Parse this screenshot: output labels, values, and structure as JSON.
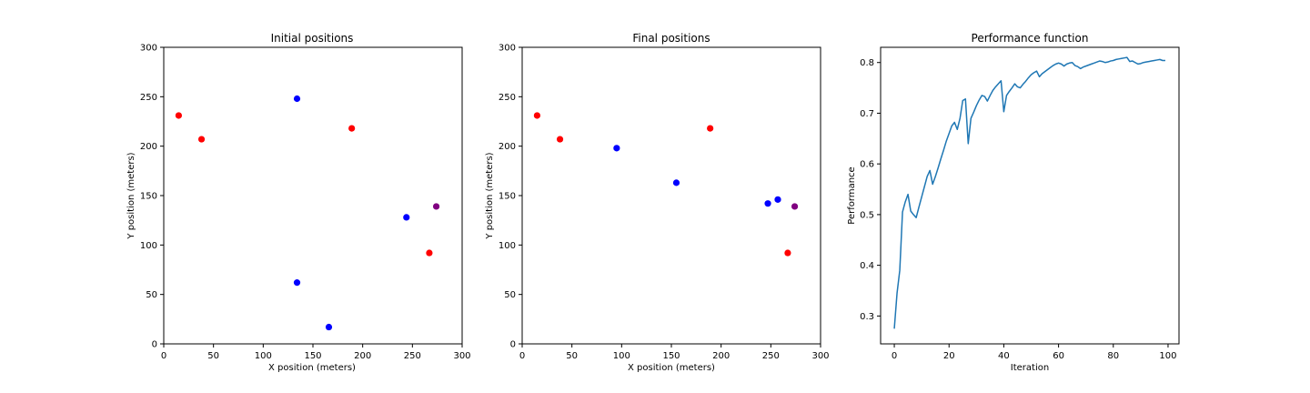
{
  "chart_data": [
    {
      "type": "scatter",
      "title": "Initial positions",
      "xlabel": "X position (meters)",
      "ylabel": "Y position (meters)",
      "xlim": [
        0,
        300
      ],
      "ylim": [
        0,
        300
      ],
      "xticks": [
        "0",
        "50",
        "100",
        "150",
        "200",
        "250",
        "300"
      ],
      "yticks": [
        "0",
        "50",
        "100",
        "150",
        "200",
        "250",
        "300"
      ],
      "grid": false,
      "points": [
        {
          "x": 15,
          "y": 231,
          "color": "#ff0000"
        },
        {
          "x": 38,
          "y": 207,
          "color": "#ff0000"
        },
        {
          "x": 134,
          "y": 248,
          "color": "#0000ff"
        },
        {
          "x": 189,
          "y": 218,
          "color": "#ff0000"
        },
        {
          "x": 244,
          "y": 128,
          "color": "#0000ff"
        },
        {
          "x": 274,
          "y": 139,
          "color": "#800080"
        },
        {
          "x": 267,
          "y": 92,
          "color": "#ff0000"
        },
        {
          "x": 134,
          "y": 62,
          "color": "#0000ff"
        },
        {
          "x": 166,
          "y": 17,
          "color": "#0000ff"
        }
      ]
    },
    {
      "type": "scatter",
      "title": "Final positions",
      "xlabel": "X position (meters)",
      "ylabel": "Y position (meters)",
      "xlim": [
        0,
        300
      ],
      "ylim": [
        0,
        300
      ],
      "xticks": [
        "0",
        "50",
        "100",
        "150",
        "200",
        "250",
        "300"
      ],
      "yticks": [
        "0",
        "50",
        "100",
        "150",
        "200",
        "250",
        "300"
      ],
      "grid": false,
      "points": [
        {
          "x": 15,
          "y": 231,
          "color": "#ff0000"
        },
        {
          "x": 38,
          "y": 207,
          "color": "#ff0000"
        },
        {
          "x": 95,
          "y": 198,
          "color": "#0000ff"
        },
        {
          "x": 155,
          "y": 163,
          "color": "#0000ff"
        },
        {
          "x": 189,
          "y": 218,
          "color": "#ff0000"
        },
        {
          "x": 247,
          "y": 142,
          "color": "#0000ff"
        },
        {
          "x": 257,
          "y": 146,
          "color": "#0000ff"
        },
        {
          "x": 274,
          "y": 139,
          "color": "#800080"
        },
        {
          "x": 267,
          "y": 92,
          "color": "#ff0000"
        }
      ]
    },
    {
      "type": "line",
      "title": "Performance function",
      "xlabel": "Iteration",
      "ylabel": "Performance",
      "xlim": [
        -5,
        104
      ],
      "ylim": [
        0.245,
        0.83
      ],
      "xtick_values": [
        0,
        20,
        40,
        60,
        80,
        100
      ],
      "xticks": [
        "0",
        "20",
        "40",
        "60",
        "80",
        "100"
      ],
      "ytick_values": [
        0.3,
        0.4,
        0.5,
        0.6,
        0.7,
        0.8
      ],
      "yticks": [
        "0.3",
        "0.4",
        "0.5",
        "0.6",
        "0.7",
        "0.8"
      ],
      "grid": false,
      "line_color": "#1f77b4",
      "series": [
        {
          "x": [
            0,
            1,
            2,
            3,
            4,
            5,
            6,
            7,
            8,
            9,
            10,
            11,
            12,
            13,
            14,
            15,
            16,
            17,
            18,
            19,
            20,
            21,
            22,
            23,
            24,
            25,
            26,
            27,
            28,
            29,
            30,
            31,
            32,
            33,
            34,
            35,
            36,
            37,
            38,
            39,
            40,
            41,
            42,
            43,
            44,
            45,
            46,
            47,
            48,
            49,
            50,
            51,
            52,
            53,
            54,
            55,
            56,
            57,
            58,
            59,
            60,
            61,
            62,
            63,
            64,
            65,
            66,
            67,
            68,
            69,
            70,
            71,
            72,
            73,
            74,
            75,
            76,
            77,
            78,
            79,
            80,
            81,
            82,
            83,
            84,
            85,
            86,
            87,
            88,
            89,
            90,
            91,
            92,
            93,
            94,
            95,
            96,
            97,
            98,
            99
          ],
          "y": [
            0.275,
            0.345,
            0.39,
            0.505,
            0.525,
            0.54,
            0.507,
            0.5,
            0.494,
            0.515,
            0.535,
            0.555,
            0.575,
            0.587,
            0.56,
            0.575,
            0.592,
            0.61,
            0.627,
            0.645,
            0.66,
            0.675,
            0.682,
            0.668,
            0.69,
            0.725,
            0.728,
            0.64,
            0.69,
            0.702,
            0.715,
            0.726,
            0.735,
            0.733,
            0.724,
            0.735,
            0.745,
            0.752,
            0.758,
            0.764,
            0.703,
            0.735,
            0.743,
            0.75,
            0.758,
            0.752,
            0.75,
            0.757,
            0.763,
            0.77,
            0.776,
            0.78,
            0.783,
            0.772,
            0.778,
            0.782,
            0.786,
            0.79,
            0.794,
            0.797,
            0.799,
            0.797,
            0.793,
            0.797,
            0.799,
            0.8,
            0.794,
            0.792,
            0.788,
            0.791,
            0.793,
            0.795,
            0.797,
            0.799,
            0.801,
            0.803,
            0.802,
            0.8,
            0.801,
            0.803,
            0.804,
            0.806,
            0.807,
            0.808,
            0.809,
            0.81,
            0.802,
            0.803,
            0.8,
            0.797,
            0.798,
            0.8,
            0.801,
            0.802,
            0.803,
            0.804,
            0.805,
            0.806,
            0.804,
            0.804
          ]
        }
      ]
    }
  ]
}
